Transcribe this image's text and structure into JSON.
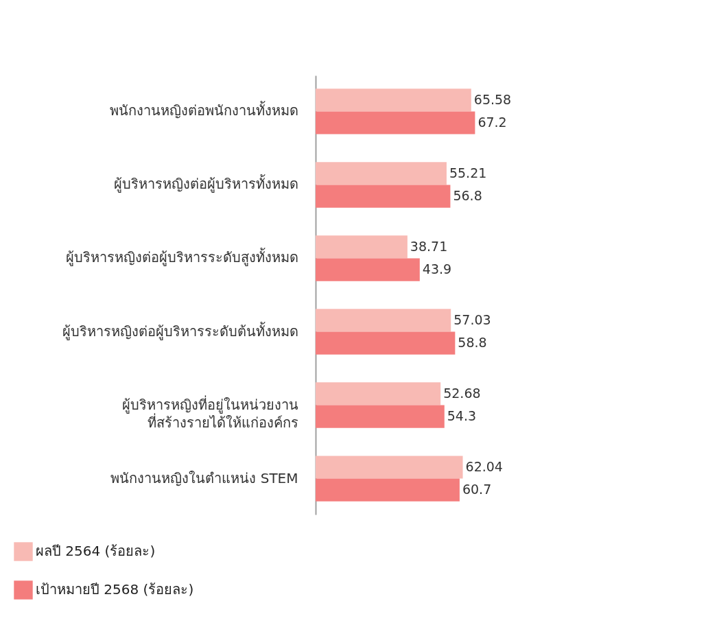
{
  "chart_data": {
    "type": "bar",
    "orientation": "horizontal",
    "categories": [
      "พนักงานหญิงต่อพนักงานทั้งหมด",
      "ผู้บริหารหญิงต่อผู้บริหารทั้งหมด",
      "ผู้บริหารหญิงต่อผู้บริหารระดับสูงทั้งหมด",
      "ผู้บริหารหญิงต่อผู้บริหารระดับต้นทั้งหมด",
      "ผู้บริหารหญิงที่อยู่ในหน่วยงาน\nที่สร้างรายได้ให้แก่องค์กร",
      "พนักงานหญิงในตำแหน่ง STEM"
    ],
    "series": [
      {
        "name": "ผลปี 2564 (ร้อยละ)",
        "color": "#f8bab4",
        "values": [
          65.58,
          55.21,
          38.71,
          57.03,
          52.68,
          62.04
        ]
      },
      {
        "name": "เป้าหมายปี 2568 (ร้อยละ)",
        "color": "#f47d7d",
        "values": [
          67.2,
          56.8,
          43.9,
          58.8,
          54.3,
          60.7
        ]
      }
    ],
    "data_labels": true,
    "grid": false,
    "legend": "bottom left"
  }
}
